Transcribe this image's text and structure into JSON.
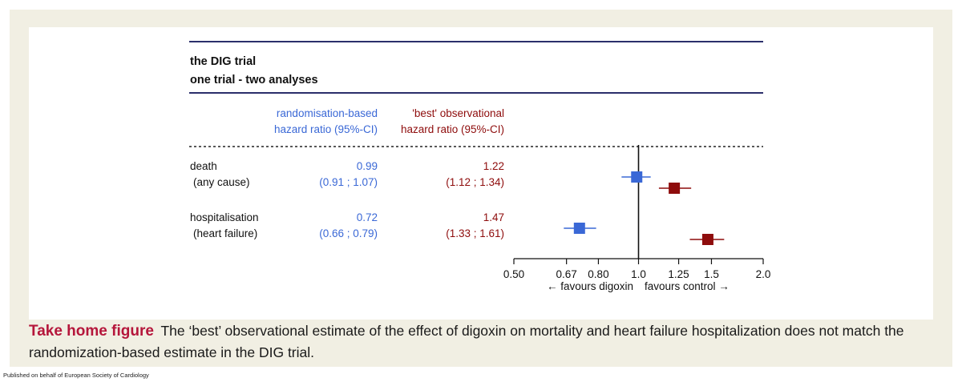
{
  "chart_data": {
    "type": "forest",
    "title": [
      "the DIG trial",
      "one trial - two analyses"
    ],
    "column_headers": {
      "randomisation": [
        "randomisation-based",
        "hazard ratio (95%-CI)"
      ],
      "observational": [
        "'best' observational",
        "hazard ratio (95%-CI)"
      ]
    },
    "rows": [
      {
        "label": [
          "death",
          "(any cause)"
        ],
        "randomisation": {
          "hr": 0.99,
          "lo": 0.91,
          "hi": 1.07,
          "hr_text": "0.99",
          "ci_text": "(0.91 ; 1.07)"
        },
        "observational": {
          "hr": 1.22,
          "lo": 1.12,
          "hi": 1.34,
          "hr_text": "1.22",
          "ci_text": "(1.12 ; 1.34)"
        }
      },
      {
        "label": [
          "hospitalisation",
          "(heart failure)"
        ],
        "randomisation": {
          "hr": 0.72,
          "lo": 0.66,
          "hi": 0.79,
          "hr_text": "0.72",
          "ci_text": "(0.66 ; 0.79)"
        },
        "observational": {
          "hr": 1.47,
          "lo": 1.33,
          "hi": 1.61,
          "hr_text": "1.47",
          "ci_text": "(1.33 ; 1.61)"
        }
      }
    ],
    "x_scale": "log",
    "x_ticks": [
      0.5,
      0.67,
      0.8,
      1.0,
      1.25,
      1.5,
      2.0
    ],
    "x_tick_labels": [
      "0.50",
      "0.67",
      "0.80",
      "1.0",
      "1.25",
      "1.5",
      "2.0"
    ],
    "xlim": [
      0.5,
      2.0
    ],
    "reference_line": 1.0,
    "direction_labels": {
      "left": "← favours digoxin",
      "right": "favours control →"
    },
    "colors": {
      "randomisation": "#3a68d6",
      "observational": "#8e0c0c",
      "rule": "#2b2f6b"
    }
  },
  "caption": {
    "lead": "Take home figure",
    "text": "The ‘best’ observational estimate of the effect of digoxin on mortality and heart failure hospitalization does not match the randomization-based estimate in the DIG trial."
  },
  "footer": "Published on behalf of European Society of Cardiology"
}
